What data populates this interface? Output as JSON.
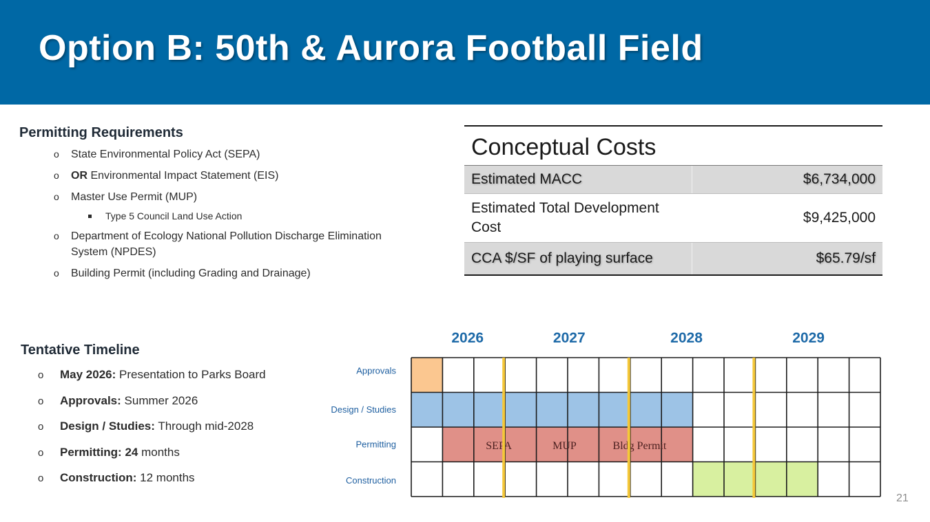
{
  "slide": {
    "title": "Option B: 50th & Aurora Football Field",
    "page_number": "21"
  },
  "permitting": {
    "heading": "Permitting Requirements",
    "items": [
      {
        "bold": "",
        "text": "State Environmental Policy Act (SEPA)"
      },
      {
        "bold": "OR",
        "text": " Environmental Impact Statement (EIS)"
      },
      {
        "bold": "",
        "text": "Master Use Permit (MUP)"
      },
      {
        "bold": "",
        "text": "Department of Ecology National Pollution Discharge Elimination System (NPDES)"
      },
      {
        "bold": "",
        "text": "Building Permit (including Grading and Drainage)"
      }
    ],
    "sub_item": "Type 5 Council Land Use Action"
  },
  "costs": {
    "title": "Conceptual Costs",
    "rows": [
      {
        "label": "Estimated MACC",
        "value": "$6,734,000"
      },
      {
        "label": "Estimated Total Development Cost",
        "value": "$9,425,000"
      },
      {
        "label": "CCA $/SF of playing surface",
        "value": "$65.79/sf"
      }
    ]
  },
  "timeline": {
    "heading": "Tentative Timeline",
    "items": [
      {
        "bold": "May 2026:",
        "text": " Presentation to Parks Board"
      },
      {
        "bold": "Approvals:",
        "text": " Summer 2026"
      },
      {
        "bold": "Design / Studies:",
        "text": " Through mid-2028"
      },
      {
        "bold": "Permitting: 24",
        "text": " months"
      },
      {
        "bold": "Construction:",
        "text": " 12 months"
      }
    ]
  },
  "gantt": {
    "years": [
      "2026",
      "2027",
      "2028",
      "2029"
    ],
    "column_count": 15,
    "rows": [
      {
        "label": "Approvals",
        "start": 0,
        "end": 1,
        "color": "#fbc790"
      },
      {
        "label": "Design / Studies",
        "start": 0,
        "end": 9,
        "color": "#9dc3e6"
      },
      {
        "label": "Permitting",
        "start": 1,
        "end": 9,
        "color": "#e09088"
      },
      {
        "label": "Construction",
        "start": 9,
        "end": 13,
        "color": "#d8f0a0"
      }
    ],
    "permit_labels": [
      {
        "text": "SEPA",
        "col": 2.8
      },
      {
        "text": "MUP",
        "col": 4.9
      },
      {
        "text": "Bldg Permit",
        "col": 7.3
      }
    ],
    "year_markers": [
      3,
      7,
      11
    ],
    "marker_color": "#f5c83a"
  }
}
